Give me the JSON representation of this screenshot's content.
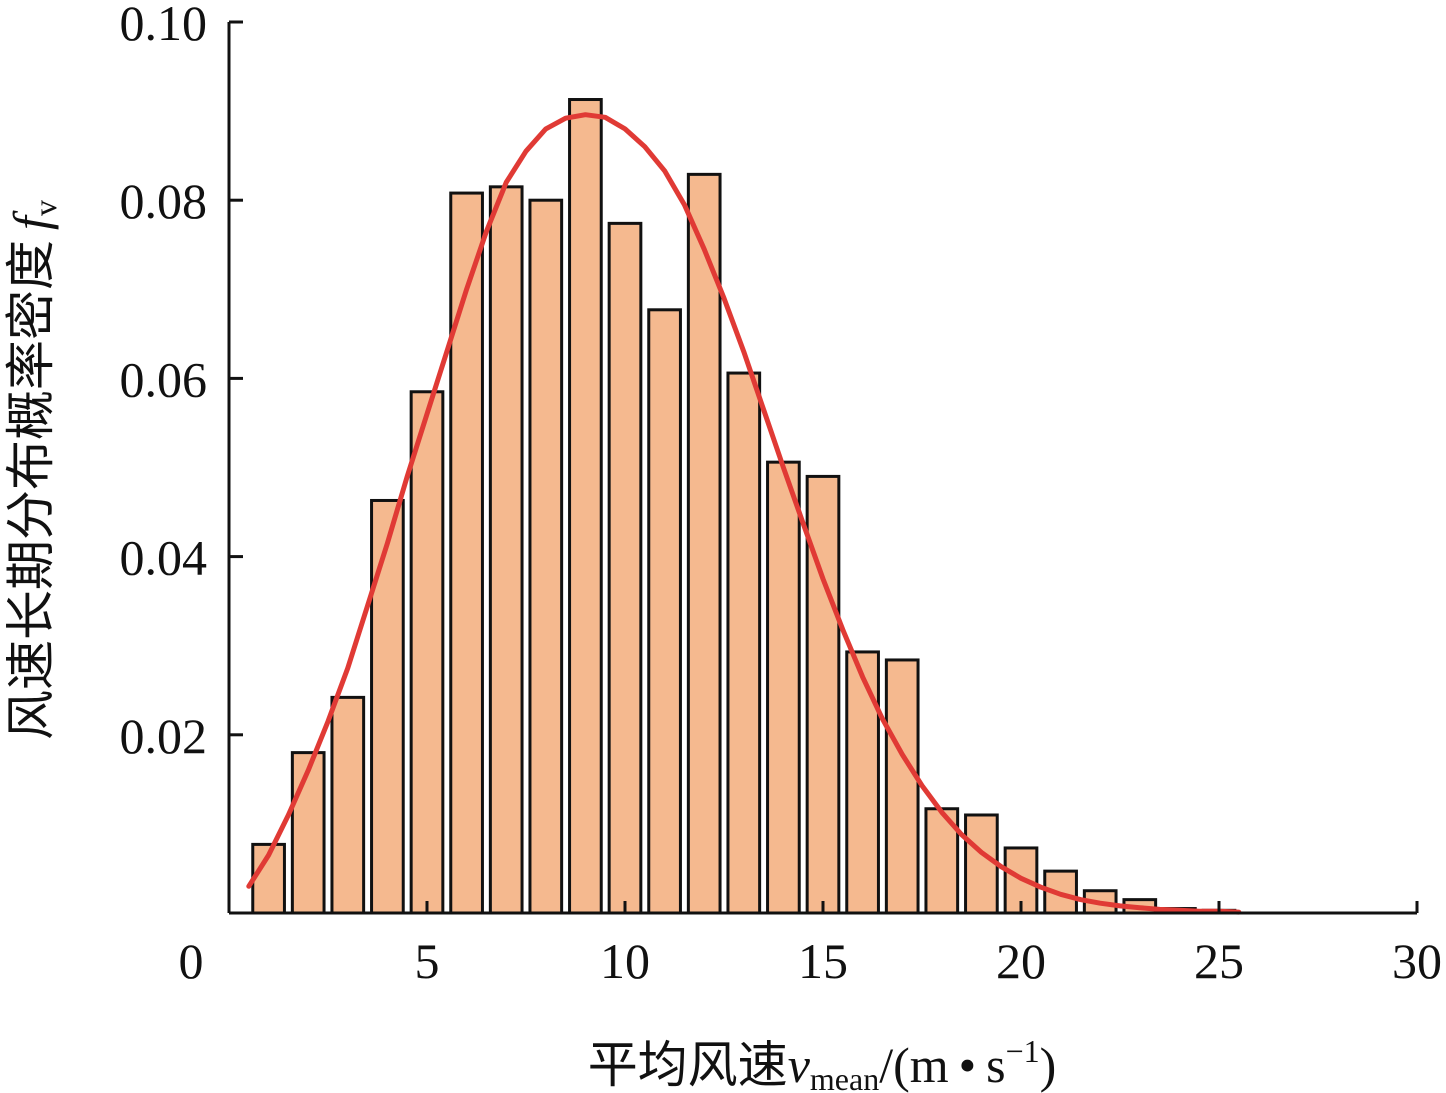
{
  "chart_data": {
    "type": "bar",
    "xlabel": {
      "prefix": "平均风速",
      "var": "v",
      "sub": "mean",
      "unit_open": "/(m",
      "dot": "•",
      "unit_s": "s",
      "sup": "−1",
      "unit_close": ")"
    },
    "ylabel": {
      "prefix": "风速长期分布概率密度",
      "var": "f",
      "sub": "v"
    },
    "xlim": [
      0,
      30
    ],
    "ylim": [
      0,
      0.1
    ],
    "xticks": [
      {
        "value": 0,
        "label": "0"
      },
      {
        "value": 5,
        "label": "5"
      },
      {
        "value": 10,
        "label": "10"
      },
      {
        "value": 15,
        "label": "15"
      },
      {
        "value": 20,
        "label": "20"
      },
      {
        "value": 25,
        "label": "25"
      },
      {
        "value": 30,
        "label": "30"
      }
    ],
    "yticks": [
      {
        "value": 0.02,
        "label": "0.02"
      },
      {
        "value": 0.04,
        "label": "0.04"
      },
      {
        "value": 0.06,
        "label": "0.06"
      },
      {
        "value": 0.08,
        "label": "0.08"
      },
      {
        "value": 0.1,
        "label": "0.10"
      }
    ],
    "bar_width": 0.8,
    "bars": [
      {
        "x": 1,
        "y": 0.0077
      },
      {
        "x": 2,
        "y": 0.018
      },
      {
        "x": 3,
        "y": 0.0242
      },
      {
        "x": 4,
        "y": 0.0463
      },
      {
        "x": 5,
        "y": 0.0585
      },
      {
        "x": 6,
        "y": 0.0808
      },
      {
        "x": 7,
        "y": 0.0815
      },
      {
        "x": 8,
        "y": 0.08
      },
      {
        "x": 9,
        "y": 0.0913
      },
      {
        "x": 10,
        "y": 0.0774
      },
      {
        "x": 11,
        "y": 0.0677
      },
      {
        "x": 12,
        "y": 0.0829
      },
      {
        "x": 13,
        "y": 0.0606
      },
      {
        "x": 14,
        "y": 0.0506
      },
      {
        "x": 15,
        "y": 0.049
      },
      {
        "x": 16,
        "y": 0.0293
      },
      {
        "x": 17,
        "y": 0.0284
      },
      {
        "x": 18,
        "y": 0.0117
      },
      {
        "x": 19,
        "y": 0.011
      },
      {
        "x": 20,
        "y": 0.0073
      },
      {
        "x": 21,
        "y": 0.0047
      },
      {
        "x": 22,
        "y": 0.0025
      },
      {
        "x": 23,
        "y": 0.0015
      },
      {
        "x": 24,
        "y": 0.0005
      },
      {
        "x": 25,
        "y": 0.0003
      }
    ],
    "fit_curve": {
      "type": "line",
      "x": [
        0.5,
        1,
        1.5,
        2,
        2.5,
        3,
        3.5,
        4,
        4.5,
        5,
        5.5,
        6,
        6.5,
        7,
        7.5,
        8,
        8.5,
        9,
        9.5,
        10,
        10.5,
        11,
        11.5,
        12,
        12.5,
        13,
        13.5,
        14,
        14.5,
        15,
        15.5,
        16,
        16.5,
        17,
        17.5,
        18,
        18.5,
        19,
        19.5,
        20,
        20.5,
        21,
        21.5,
        22,
        22.5,
        23,
        23.5,
        24,
        24.5,
        25,
        25.5
      ],
      "y": [
        0.003,
        0.0065,
        0.011,
        0.016,
        0.0215,
        0.0275,
        0.0345,
        0.0415,
        0.049,
        0.056,
        0.063,
        0.07,
        0.0765,
        0.082,
        0.0855,
        0.088,
        0.0892,
        0.0896,
        0.0893,
        0.088,
        0.086,
        0.0833,
        0.0795,
        0.0745,
        0.069,
        0.063,
        0.0565,
        0.05,
        0.0437,
        0.0375,
        0.0318,
        0.0265,
        0.0218,
        0.0178,
        0.0143,
        0.0113,
        0.0088,
        0.0068,
        0.0052,
        0.0039,
        0.0029,
        0.0021,
        0.0015,
        0.0011,
        0.0008,
        0.0006,
        0.0004,
        0.0003,
        0.0002,
        0.0002,
        0.0001
      ]
    },
    "grid": false,
    "colors": {
      "bar_fill": "#f5b98f",
      "bar_stroke": "#111111",
      "curve": "#e03a35",
      "axis": "#111111"
    }
  }
}
